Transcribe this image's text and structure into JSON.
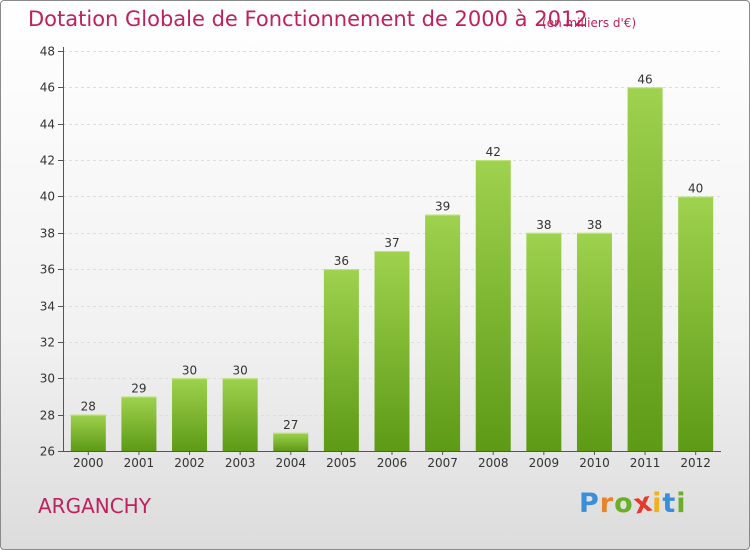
{
  "title": "Dotation Globale de Fonctionnement de 2000 à 2012",
  "subtitle": "(en milliers d'€)",
  "commune": "ARGANCHY",
  "logo": {
    "letters": [
      "P",
      "r",
      "o",
      "x",
      "i",
      "t",
      "i"
    ],
    "colors": [
      "#3a8fd8",
      "#e8842a",
      "#6aae2a",
      "#e53a2a",
      "#f0b020",
      "#3a8fd8",
      "#6aae2a"
    ]
  },
  "colors": {
    "bar_top": "#9fd24e",
    "bar_bottom": "#5d9a16",
    "accent": "#c0215c"
  },
  "chart_data": {
    "type": "bar",
    "categories": [
      "2000",
      "2001",
      "2002",
      "2003",
      "2004",
      "2005",
      "2006",
      "2007",
      "2008",
      "2009",
      "2010",
      "2011",
      "2012"
    ],
    "values": [
      28,
      29,
      30,
      30,
      27,
      36,
      37,
      39,
      42,
      38,
      38,
      46,
      40
    ],
    "title": "Dotation Globale de Fonctionnement de 2000 à 2012",
    "ylim": [
      26,
      48
    ],
    "yticks": [
      26,
      28,
      30,
      32,
      34,
      36,
      38,
      40,
      42,
      44,
      46,
      48
    ],
    "grid": true,
    "legend": "none"
  }
}
